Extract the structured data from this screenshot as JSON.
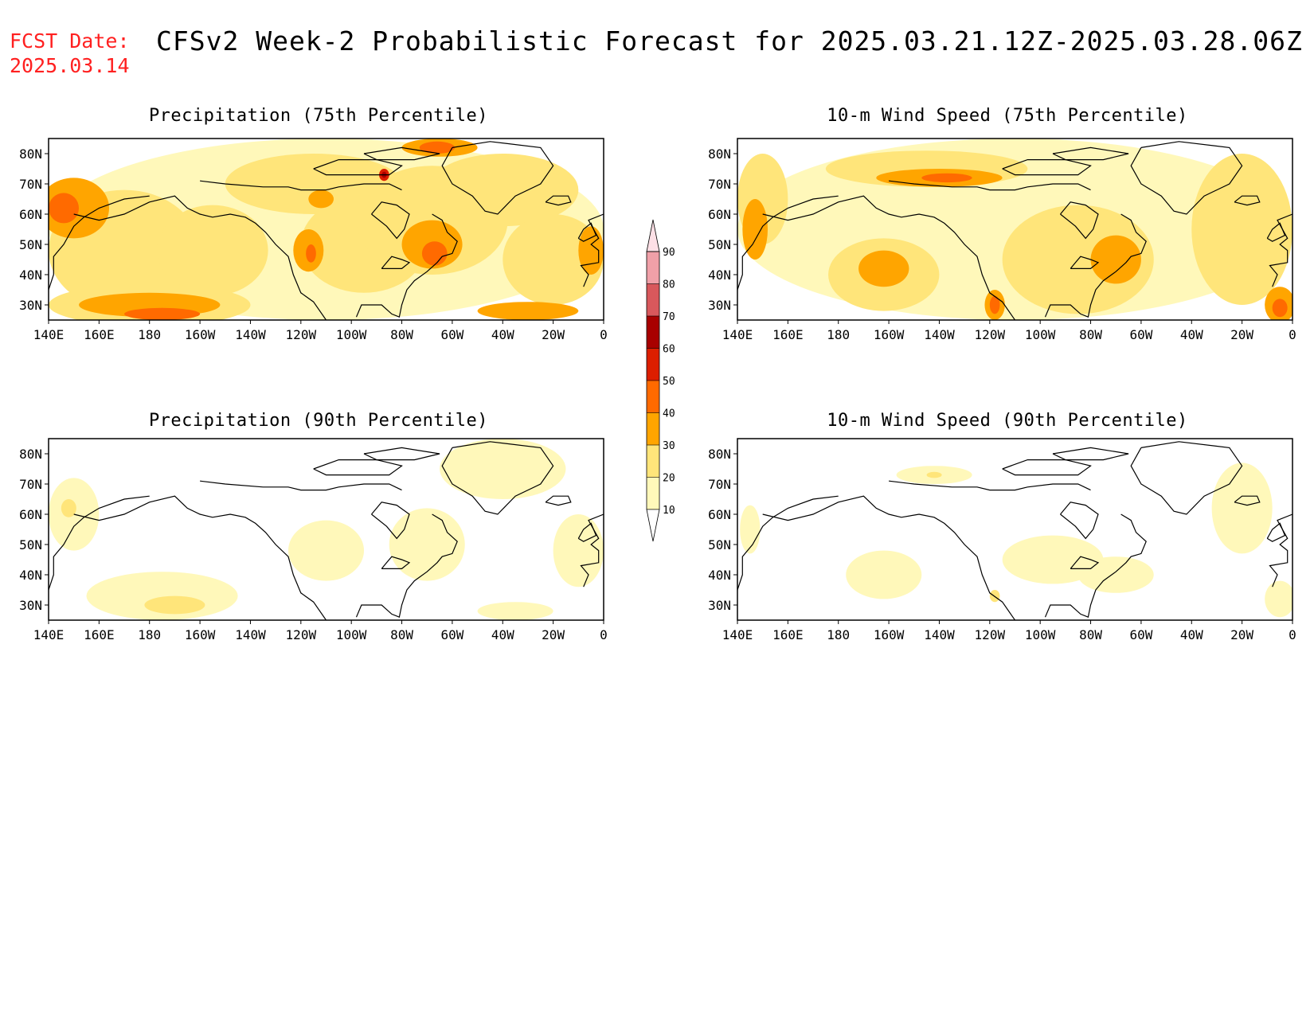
{
  "header": {
    "fcst_label": "FCST Date:",
    "fcst_date": "2025.03.14",
    "title": "CFSv2 Week-2 Probabilistic Forecast for 2025.03.21.12Z-2025.03.28.06Z"
  },
  "colors": {
    "c10": "#fff8ba",
    "c20": "#ffe57a",
    "c30": "#ffa500",
    "c40": "#ff6a00",
    "c50": "#dc1e00",
    "c60": "#a80000",
    "c70": "#d8585c",
    "c80": "#f0a0a8",
    "c90": "#fde0e6"
  },
  "colorbar": {
    "levels": [
      "10",
      "20",
      "30",
      "40",
      "50",
      "60",
      "70",
      "80",
      "90"
    ],
    "colors": [
      "#fff8ba",
      "#ffe57a",
      "#ffa500",
      "#ff6a00",
      "#dc1e00",
      "#a80000",
      "#d8585c",
      "#f0a0a8",
      "#fde0e6"
    ]
  },
  "axes": {
    "lon_labels": [
      "140E",
      "160E",
      "180",
      "160W",
      "140W",
      "120W",
      "100W",
      "80W",
      "60W",
      "40W",
      "20W",
      "0"
    ],
    "lat_labels": [
      "80N",
      "70N",
      "60N",
      "50N",
      "40N",
      "30N"
    ],
    "lon_range": [
      140,
      360
    ],
    "lat_range": [
      25,
      85
    ]
  },
  "panels": [
    {
      "id": "precip75",
      "title": "Precipitation (75th Percentile)",
      "fields": [
        {
          "level": "c10",
          "shape": "ellipse",
          "lon": 250,
          "lat": 55,
          "rlon": 110,
          "rlat": 30
        },
        {
          "level": "c20",
          "shape": "ellipse",
          "lon": 170,
          "lat": 48,
          "rlon": 30,
          "rlat": 20
        },
        {
          "level": "c20",
          "shape": "ellipse",
          "lon": 205,
          "lat": 48,
          "rlon": 22,
          "rlat": 15
        },
        {
          "level": "c20",
          "shape": "ellipse",
          "lon": 245,
          "lat": 70,
          "rlon": 35,
          "rlat": 10
        },
        {
          "level": "c20",
          "shape": "ellipse",
          "lon": 265,
          "lat": 50,
          "rlon": 25,
          "rlat": 16
        },
        {
          "level": "c20",
          "shape": "ellipse",
          "lon": 292,
          "lat": 58,
          "rlon": 30,
          "rlat": 18
        },
        {
          "level": "c20",
          "shape": "ellipse",
          "lon": 320,
          "lat": 68,
          "rlon": 30,
          "rlat": 12
        },
        {
          "level": "c20",
          "shape": "ellipse",
          "lon": 340,
          "lat": 45,
          "rlon": 20,
          "rlat": 15
        },
        {
          "level": "c20",
          "shape": "ellipse",
          "lon": 180,
          "lat": 30,
          "rlon": 40,
          "rlat": 7
        },
        {
          "level": "c30",
          "shape": "ellipse",
          "lon": 150,
          "lat": 62,
          "rlon": 14,
          "rlat": 10
        },
        {
          "level": "c30",
          "shape": "ellipse",
          "lon": 180,
          "lat": 30,
          "rlon": 28,
          "rlat": 4
        },
        {
          "level": "c30",
          "shape": "ellipse",
          "lon": 243,
          "lat": 48,
          "rlon": 6,
          "rlat": 7
        },
        {
          "level": "c30",
          "shape": "ellipse",
          "lon": 292,
          "lat": 50,
          "rlon": 12,
          "rlat": 8
        },
        {
          "level": "c30",
          "shape": "ellipse",
          "lon": 330,
          "lat": 28,
          "rlon": 20,
          "rlat": 3
        },
        {
          "level": "c30",
          "shape": "ellipse",
          "lon": 248,
          "lat": 65,
          "rlon": 5,
          "rlat": 3
        },
        {
          "level": "c30",
          "shape": "ellipse",
          "lon": 295,
          "lat": 82,
          "rlon": 15,
          "rlat": 3
        },
        {
          "level": "c30",
          "shape": "ellipse",
          "lon": 355,
          "lat": 48,
          "rlon": 5,
          "rlat": 8
        },
        {
          "level": "c40",
          "shape": "ellipse",
          "lon": 146,
          "lat": 62,
          "rlon": 6,
          "rlat": 5
        },
        {
          "level": "c40",
          "shape": "ellipse",
          "lon": 244,
          "lat": 47,
          "rlon": 2,
          "rlat": 3
        },
        {
          "level": "c40",
          "shape": "ellipse",
          "lon": 185,
          "lat": 27,
          "rlon": 15,
          "rlat": 2
        },
        {
          "level": "c40",
          "shape": "ellipse",
          "lon": 293,
          "lat": 47,
          "rlon": 5,
          "rlat": 4
        },
        {
          "level": "c40",
          "shape": "ellipse",
          "lon": 294,
          "lat": 82,
          "rlon": 7,
          "rlat": 2
        },
        {
          "level": "c50",
          "shape": "ellipse",
          "lon": 273,
          "lat": 73,
          "rlon": 2,
          "rlat": 2
        },
        {
          "level": "c60",
          "shape": "ellipse",
          "lon": 273,
          "lat": 73,
          "rlon": 1,
          "rlat": 1
        }
      ]
    },
    {
      "id": "wind75",
      "title": "10-m Wind Speed (75th Percentile)",
      "fields": [
        {
          "level": "c10",
          "shape": "ellipse",
          "lon": 250,
          "lat": 55,
          "rlon": 110,
          "rlat": 30
        },
        {
          "level": "c20",
          "shape": "ellipse",
          "lon": 198,
          "lat": 40,
          "rlon": 22,
          "rlat": 12
        },
        {
          "level": "c20",
          "shape": "ellipse",
          "lon": 275,
          "lat": 45,
          "rlon": 30,
          "rlat": 18
        },
        {
          "level": "c20",
          "shape": "ellipse",
          "lon": 340,
          "lat": 55,
          "rlon": 20,
          "rlat": 25
        },
        {
          "level": "c20",
          "shape": "ellipse",
          "lon": 215,
          "lat": 75,
          "rlon": 40,
          "rlat": 6
        },
        {
          "level": "c20",
          "shape": "ellipse",
          "lon": 150,
          "lat": 65,
          "rlon": 10,
          "rlat": 15
        },
        {
          "level": "c30",
          "shape": "ellipse",
          "lon": 198,
          "lat": 42,
          "rlon": 10,
          "rlat": 6
        },
        {
          "level": "c30",
          "shape": "ellipse",
          "lon": 220,
          "lat": 72,
          "rlon": 25,
          "rlat": 3
        },
        {
          "level": "c30",
          "shape": "ellipse",
          "lon": 147,
          "lat": 55,
          "rlon": 5,
          "rlat": 10
        },
        {
          "level": "c30",
          "shape": "ellipse",
          "lon": 290,
          "lat": 45,
          "rlon": 10,
          "rlat": 8
        },
        {
          "level": "c30",
          "shape": "ellipse",
          "lon": 242,
          "lat": 30,
          "rlon": 4,
          "rlat": 5
        },
        {
          "level": "c30",
          "shape": "ellipse",
          "lon": 355,
          "lat": 30,
          "rlon": 6,
          "rlat": 6
        },
        {
          "level": "c40",
          "shape": "ellipse",
          "lon": 223,
          "lat": 72,
          "rlon": 10,
          "rlat": 1.5
        },
        {
          "level": "c40",
          "shape": "ellipse",
          "lon": 242,
          "lat": 30,
          "rlon": 2,
          "rlat": 3
        },
        {
          "level": "c40",
          "shape": "ellipse",
          "lon": 355,
          "lat": 29,
          "rlon": 3,
          "rlat": 3
        }
      ]
    },
    {
      "id": "precip90",
      "title": "Precipitation (90th Percentile)",
      "fields": [
        {
          "level": "c10",
          "shape": "ellipse",
          "lon": 185,
          "lat": 33,
          "rlon": 30,
          "rlat": 8
        },
        {
          "level": "c10",
          "shape": "ellipse",
          "lon": 150,
          "lat": 60,
          "rlon": 10,
          "rlat": 12
        },
        {
          "level": "c10",
          "shape": "ellipse",
          "lon": 250,
          "lat": 48,
          "rlon": 15,
          "rlat": 10
        },
        {
          "level": "c10",
          "shape": "ellipse",
          "lon": 290,
          "lat": 50,
          "rlon": 15,
          "rlat": 12
        },
        {
          "level": "c10",
          "shape": "ellipse",
          "lon": 320,
          "lat": 75,
          "rlon": 25,
          "rlat": 10
        },
        {
          "level": "c10",
          "shape": "ellipse",
          "lon": 350,
          "lat": 48,
          "rlon": 10,
          "rlat": 12
        },
        {
          "level": "c10",
          "shape": "ellipse",
          "lon": 325,
          "lat": 28,
          "rlon": 15,
          "rlat": 3
        },
        {
          "level": "c20",
          "shape": "ellipse",
          "lon": 190,
          "lat": 30,
          "rlon": 12,
          "rlat": 3
        },
        {
          "level": "c20",
          "shape": "ellipse",
          "lon": 148,
          "lat": 62,
          "rlon": 3,
          "rlat": 3
        }
      ]
    },
    {
      "id": "wind90",
      "title": "10-m Wind Speed (90th Percentile)",
      "fields": [
        {
          "level": "c10",
          "shape": "ellipse",
          "lon": 198,
          "lat": 40,
          "rlon": 15,
          "rlat": 8
        },
        {
          "level": "c10",
          "shape": "ellipse",
          "lon": 265,
          "lat": 45,
          "rlon": 20,
          "rlat": 8
        },
        {
          "level": "c10",
          "shape": "ellipse",
          "lon": 218,
          "lat": 73,
          "rlon": 15,
          "rlat": 3
        },
        {
          "level": "c10",
          "shape": "ellipse",
          "lon": 290,
          "lat": 40,
          "rlon": 15,
          "rlat": 6
        },
        {
          "level": "c10",
          "shape": "ellipse",
          "lon": 355,
          "lat": 32,
          "rlon": 6,
          "rlat": 6
        },
        {
          "level": "c10",
          "shape": "ellipse",
          "lon": 340,
          "lat": 62,
          "rlon": 12,
          "rlat": 15
        },
        {
          "level": "c10",
          "shape": "ellipse",
          "lon": 145,
          "lat": 55,
          "rlon": 4,
          "rlat": 8
        },
        {
          "level": "c20",
          "shape": "ellipse",
          "lon": 218,
          "lat": 73,
          "rlon": 3,
          "rlat": 1
        },
        {
          "level": "c20",
          "shape": "ellipse",
          "lon": 242,
          "lat": 33,
          "rlon": 2,
          "rlat": 2
        }
      ]
    }
  ]
}
